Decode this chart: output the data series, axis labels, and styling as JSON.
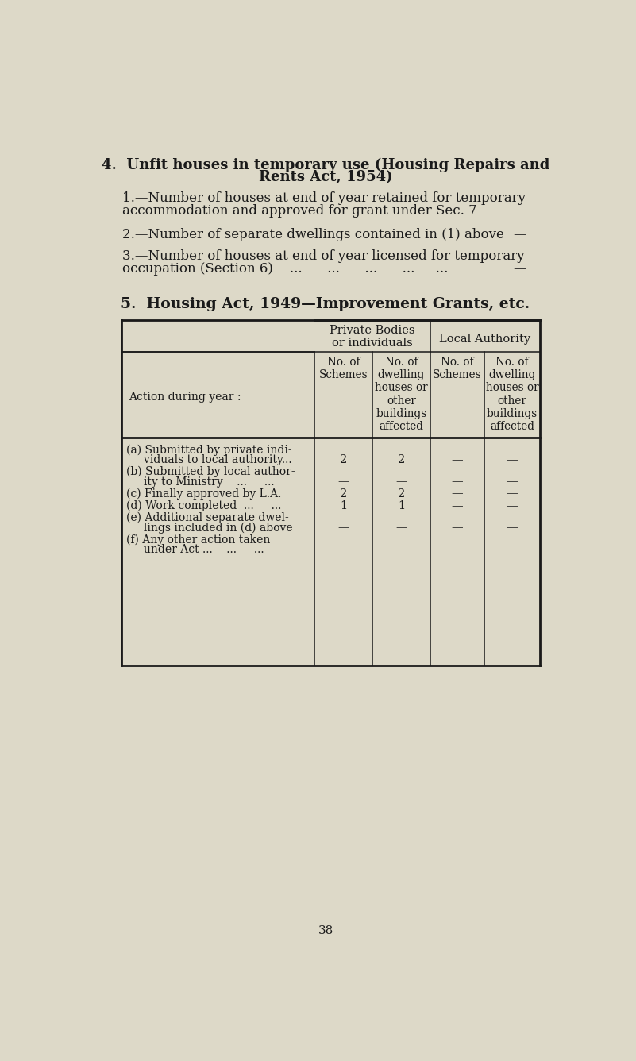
{
  "bg_color": "#ddd9c8",
  "text_color": "#1a1a1a",
  "page_number": "38",
  "section4_title_line1": "4.  Unfit houses in temporary use (Housing Repairs and",
  "section4_title_line2": "Rents Act, 1954)",
  "item1_line1": "1.—Number of houses at end of year retained for temporary",
  "item1_line2": "accommodation and approved for grant under Sec. 7",
  "item1_value": "—",
  "item2_line1": "2.—Number of separate dwellings contained in (1) above",
  "item2_value": "—",
  "item3_line1": "3.—Number of houses at end of year licensed for temporary",
  "item3_line2": "occupation (Section 6)    ...      ...      ...      ...     ...",
  "item3_value": "—",
  "section5_title": "5.  Housing Act, 1949—Improvement Grants, etc.",
  "col_header1": "Private Bodies\nor individuals",
  "col_header2": "Local Authority",
  "sub_col1": "No. of\nSchemes",
  "sub_col2": "No. of\ndwelling\nhouses or\nother\nbuildings\naffected",
  "sub_col3": "No. of\nSchemes",
  "sub_col4": "No. of\ndwelling\nhouses or\nother\nbuildings\naffected",
  "row_header": "Action during year :",
  "data_rows": [
    {
      "lines": [
        "(a) Submitted by private indi-",
        "     viduals to local authority..."
      ],
      "c1": "2",
      "c2": "2",
      "c3": "—",
      "c4": "—",
      "val_line": 1
    },
    {
      "lines": [
        "(b) Submitted by local author-",
        "     ity to Ministry    ...     ..."
      ],
      "c1": "—",
      "c2": "—",
      "c3": "—",
      "c4": "—",
      "val_line": 1
    },
    {
      "lines": [
        "(c) Finally approved by L.A."
      ],
      "c1": "2",
      "c2": "2",
      "c3": "—",
      "c4": "—",
      "val_line": 0
    },
    {
      "lines": [
        "(d) Work completed  ...     ..."
      ],
      "c1": "1",
      "c2": "1",
      "c3": "—",
      "c4": "—",
      "val_line": 0
    },
    {
      "lines": [
        "(e) Additional separate dwel-",
        "     lings included in (d) above"
      ],
      "c1": "—",
      "c2": "—",
      "c3": "—",
      "c4": "—",
      "val_line": 1
    },
    {
      "lines": [
        "(f) Any other action taken",
        "     under Act ...    ...     ..."
      ],
      "c1": "—",
      "c2": "—",
      "c3": "—",
      "c4": "—",
      "val_line": 1
    }
  ]
}
